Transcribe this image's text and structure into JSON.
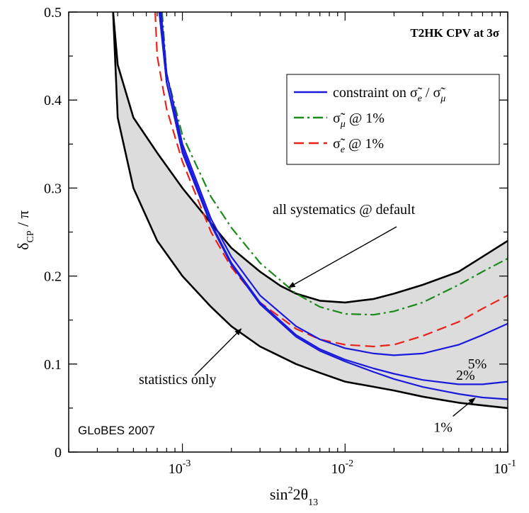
{
  "chart_data": {
    "type": "line",
    "title": "T2HK  CPV at 3σ",
    "watermark": "GLoBES 2007",
    "x_scale": "log",
    "xlim": [
      0.0002,
      0.1
    ],
    "ylim": [
      0,
      0.5
    ],
    "xlabel": {
      "base": "sin",
      "sup": "2",
      "mid": "2θ",
      "sub": "13"
    },
    "ylabel": {
      "base": "δ",
      "sub": "CP",
      "tail": " / π"
    },
    "x_ticks": [
      {
        "value": 0.001,
        "base": "10",
        "exp": "-3"
      },
      {
        "value": 0.01,
        "base": "10",
        "exp": "-2"
      },
      {
        "value": 0.1,
        "base": "10",
        "exp": "-1"
      }
    ],
    "y_ticks": [
      {
        "value": 0,
        "label": "0"
      },
      {
        "value": 0.1,
        "label": "0.1"
      },
      {
        "value": 0.2,
        "label": "0.2"
      },
      {
        "value": 0.3,
        "label": "0.3"
      },
      {
        "value": 0.4,
        "label": "0.4"
      },
      {
        "value": 0.5,
        "label": "0.5"
      }
    ],
    "band": {
      "fill": "#dcdcdc",
      "upper": [
        [
          0.000375,
          0.5
        ],
        [
          0.0004,
          0.44
        ],
        [
          0.0005,
          0.38
        ],
        [
          0.0007,
          0.34
        ],
        [
          0.001,
          0.3
        ],
        [
          0.0015,
          0.26
        ],
        [
          0.002,
          0.232
        ],
        [
          0.003,
          0.205
        ],
        [
          0.004,
          0.189
        ],
        [
          0.005,
          0.18
        ],
        [
          0.007,
          0.172
        ],
        [
          0.01,
          0.17
        ],
        [
          0.015,
          0.174
        ],
        [
          0.02,
          0.18
        ],
        [
          0.03,
          0.19
        ],
        [
          0.05,
          0.205
        ],
        [
          0.07,
          0.222
        ],
        [
          0.1,
          0.24
        ]
      ],
      "lower": [
        [
          0.000375,
          0.5
        ],
        [
          0.0004,
          0.38
        ],
        [
          0.0005,
          0.3
        ],
        [
          0.0007,
          0.24
        ],
        [
          0.001,
          0.2
        ],
        [
          0.0015,
          0.165
        ],
        [
          0.002,
          0.143
        ],
        [
          0.003,
          0.12
        ],
        [
          0.005,
          0.1
        ],
        [
          0.007,
          0.09
        ],
        [
          0.01,
          0.08
        ],
        [
          0.02,
          0.07
        ],
        [
          0.03,
          0.063
        ],
        [
          0.05,
          0.056
        ],
        [
          0.1,
          0.05
        ]
      ]
    },
    "series": [
      {
        "name": "all systematics @ default",
        "style": "solid",
        "color": "#000000",
        "in_legend": false,
        "points": [
          [
            0.000375,
            0.5
          ],
          [
            0.0004,
            0.44
          ],
          [
            0.0005,
            0.38
          ],
          [
            0.0007,
            0.34
          ],
          [
            0.001,
            0.3
          ],
          [
            0.0015,
            0.26
          ],
          [
            0.002,
            0.232
          ],
          [
            0.003,
            0.205
          ],
          [
            0.004,
            0.189
          ],
          [
            0.005,
            0.18
          ],
          [
            0.007,
            0.172
          ],
          [
            0.01,
            0.17
          ],
          [
            0.015,
            0.174
          ],
          [
            0.02,
            0.18
          ],
          [
            0.03,
            0.19
          ],
          [
            0.05,
            0.205
          ],
          [
            0.07,
            0.222
          ],
          [
            0.1,
            0.24
          ]
        ]
      },
      {
        "name": "statistics only",
        "style": "solid",
        "color": "#000000",
        "in_legend": false,
        "points": [
          [
            0.000375,
            0.5
          ],
          [
            0.0004,
            0.38
          ],
          [
            0.0005,
            0.3
          ],
          [
            0.0007,
            0.24
          ],
          [
            0.001,
            0.2
          ],
          [
            0.0015,
            0.165
          ],
          [
            0.002,
            0.143
          ],
          [
            0.003,
            0.12
          ],
          [
            0.005,
            0.1
          ],
          [
            0.007,
            0.09
          ],
          [
            0.01,
            0.08
          ],
          [
            0.02,
            0.07
          ],
          [
            0.03,
            0.063
          ],
          [
            0.05,
            0.056
          ],
          [
            0.1,
            0.05
          ]
        ]
      },
      {
        "name": "σ̃μ @ 1%",
        "style": "dashdot",
        "color": "#1a8a1a",
        "in_legend": true,
        "points": [
          [
            0.00075,
            0.5
          ],
          [
            0.0008,
            0.43
          ],
          [
            0.001,
            0.36
          ],
          [
            0.0015,
            0.29
          ],
          [
            0.002,
            0.255
          ],
          [
            0.003,
            0.215
          ],
          [
            0.005,
            0.18
          ],
          [
            0.007,
            0.165
          ],
          [
            0.01,
            0.157
          ],
          [
            0.015,
            0.156
          ],
          [
            0.02,
            0.16
          ],
          [
            0.03,
            0.17
          ],
          [
            0.05,
            0.19
          ],
          [
            0.07,
            0.205
          ],
          [
            0.1,
            0.22
          ]
        ]
      },
      {
        "name": "σ̃e @ 1%",
        "style": "dashed",
        "color": "#e8231c",
        "in_legend": true,
        "points": [
          [
            0.00068,
            0.5
          ],
          [
            0.0007,
            0.45
          ],
          [
            0.0008,
            0.39
          ],
          [
            0.001,
            0.33
          ],
          [
            0.0015,
            0.25
          ],
          [
            0.002,
            0.21
          ],
          [
            0.003,
            0.17
          ],
          [
            0.005,
            0.14
          ],
          [
            0.007,
            0.128
          ],
          [
            0.01,
            0.122
          ],
          [
            0.015,
            0.12
          ],
          [
            0.02,
            0.122
          ],
          [
            0.03,
            0.132
          ],
          [
            0.05,
            0.148
          ],
          [
            0.07,
            0.163
          ],
          [
            0.1,
            0.178
          ]
        ]
      },
      {
        "name": "constraint on σ̃e / σ̃μ (5%)",
        "style": "solid",
        "color": "#1a1adb",
        "in_legend": true,
        "points": [
          [
            0.00074,
            0.5
          ],
          [
            0.0008,
            0.43
          ],
          [
            0.001,
            0.35
          ],
          [
            0.0015,
            0.265
          ],
          [
            0.002,
            0.222
          ],
          [
            0.003,
            0.178
          ],
          [
            0.005,
            0.143
          ],
          [
            0.007,
            0.128
          ],
          [
            0.01,
            0.118
          ],
          [
            0.015,
            0.112
          ],
          [
            0.02,
            0.11
          ],
          [
            0.03,
            0.112
          ],
          [
            0.05,
            0.122
          ],
          [
            0.07,
            0.133
          ],
          [
            0.1,
            0.146
          ]
        ]
      },
      {
        "name": "constraint on σ̃e / σ̃μ (2%)",
        "style": "solid",
        "color": "#1a1adb",
        "in_legend": false,
        "points": [
          [
            0.00073,
            0.5
          ],
          [
            0.0008,
            0.42
          ],
          [
            0.001,
            0.345
          ],
          [
            0.0015,
            0.26
          ],
          [
            0.002,
            0.215
          ],
          [
            0.003,
            0.17
          ],
          [
            0.005,
            0.133
          ],
          [
            0.007,
            0.117
          ],
          [
            0.01,
            0.105
          ],
          [
            0.015,
            0.095
          ],
          [
            0.02,
            0.089
          ],
          [
            0.03,
            0.082
          ],
          [
            0.05,
            0.077
          ],
          [
            0.07,
            0.077
          ],
          [
            0.1,
            0.08
          ]
        ]
      },
      {
        "name": "constraint on σ̃e / σ̃μ (1%)",
        "style": "solid",
        "color": "#1a1adb",
        "in_legend": false,
        "points": [
          [
            0.00072,
            0.5
          ],
          [
            0.0008,
            0.42
          ],
          [
            0.001,
            0.34
          ],
          [
            0.0015,
            0.258
          ],
          [
            0.002,
            0.213
          ],
          [
            0.003,
            0.168
          ],
          [
            0.005,
            0.131
          ],
          [
            0.007,
            0.115
          ],
          [
            0.01,
            0.103
          ],
          [
            0.015,
            0.091
          ],
          [
            0.02,
            0.083
          ],
          [
            0.03,
            0.074
          ],
          [
            0.05,
            0.066
          ],
          [
            0.07,
            0.062
          ],
          [
            0.1,
            0.06
          ]
        ]
      }
    ],
    "legend": {
      "placement": "upper-right",
      "entries": [
        {
          "style": "solid",
          "color": "#1a1adb",
          "text": "constraint on σ̃e / σ̃μ",
          "pre": "constraint on ",
          "a": "σ̃",
          "a_sub": "e",
          "mid": " / ",
          "b": "σ̃",
          "b_sub": "μ",
          "post": ""
        },
        {
          "style": "dashdot",
          "color": "#1a8a1a",
          "text": "σ̃μ @ 1%",
          "pre": "",
          "a": "σ̃",
          "a_sub": "μ",
          "mid": "",
          "b": "",
          "b_sub": "",
          "post": " @ 1%"
        },
        {
          "style": "dashed",
          "color": "#e8231c",
          "text": "σ̃e @ 1%",
          "pre": "",
          "a": "σ̃",
          "a_sub": "e",
          "mid": "",
          "b": "",
          "b_sub": "",
          "post": " @ 1%"
        }
      ]
    },
    "annotations": [
      {
        "text": "all systematics @ default",
        "arrow_to": [
          0.0045,
          0.187
        ]
      },
      {
        "text": "statistics only",
        "arrow_to": [
          0.0023,
          0.14
        ]
      }
    ],
    "curve_labels": [
      {
        "text": "5%",
        "x": 0.065,
        "y": 0.095
      },
      {
        "text": "2%",
        "x": 0.055,
        "y": 0.082
      },
      {
        "text": "1%",
        "x": 0.04,
        "y": 0.023,
        "arrow_to": [
          0.063,
          0.063
        ]
      }
    ]
  }
}
